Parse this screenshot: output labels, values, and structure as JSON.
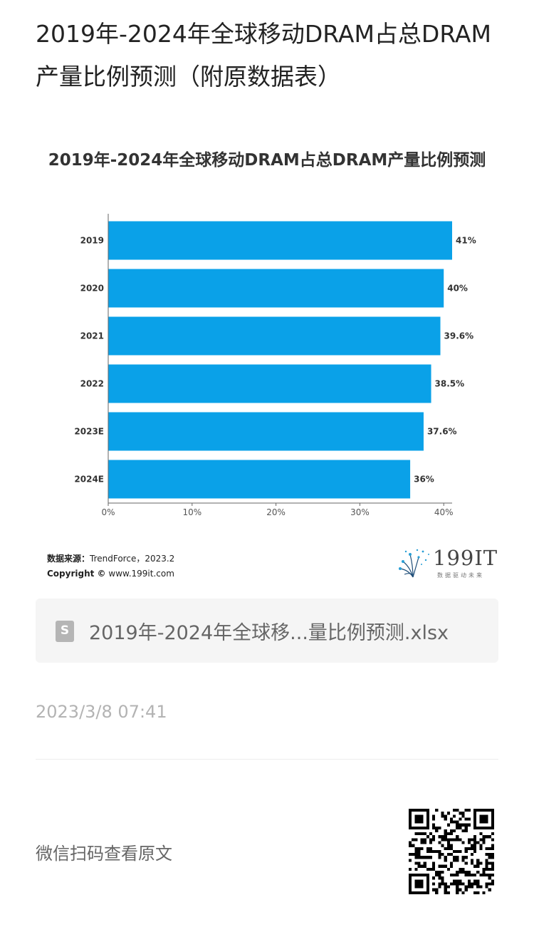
{
  "page": {
    "title": "2019年-2024年全球移动DRAM占总DRAM产量比例预测（附原数据表）"
  },
  "source": {
    "label": "数据来源：",
    "value": "TrendForce，2023.2",
    "copyright_label": "Copyright ©",
    "copyright_value": "www.199it.com"
  },
  "logo": {
    "text": "199IT",
    "subtext": "数据驱动未来"
  },
  "attachment": {
    "icon": "spreadsheet-file-icon",
    "icon_letter": "S",
    "filename": "2019年-2024年全球移...量比例预测.xlsx"
  },
  "timestamp": "2023/3/8 07:41",
  "footer": {
    "wechat_hint": "微信扫码查看原文",
    "qr_icon": "qr-code-icon"
  },
  "chart_data": {
    "type": "bar",
    "orientation": "horizontal",
    "title": "2019年-2024年全球移动DRAM占总DRAM产量比例预测",
    "categories": [
      "2019",
      "2020",
      "2021",
      "2022",
      "2023E",
      "2024E"
    ],
    "values": [
      41,
      40,
      39.6,
      38.5,
      37.6,
      36
    ],
    "value_labels": [
      "41%",
      "40%",
      "39.6%",
      "38.5%",
      "37.6%",
      "36%"
    ],
    "x_ticks": [
      "0%",
      "10%",
      "20%",
      "30%",
      "40%"
    ],
    "xlim": [
      0,
      41
    ],
    "xlabel": "",
    "ylabel": "",
    "bar_color": "#0aa1e8",
    "grid": false
  }
}
